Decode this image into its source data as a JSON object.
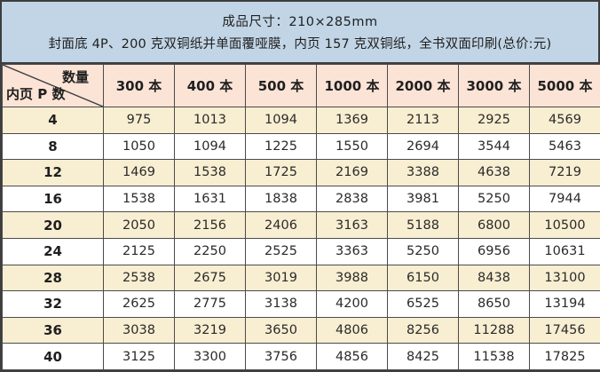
{
  "header": {
    "line1": "成品尺寸：210×285mm",
    "line2": "封面底 4P、200 克双铜纸并单面覆哑膜，内页 157 克双铜纸，全书双面印刷(总价:元)"
  },
  "table": {
    "corner": {
      "top_right_label": "数量",
      "bottom_left_label": "内页 P 数"
    },
    "columns": [
      "300 本",
      "400 本",
      "500 本",
      "1000 本",
      "2000 本",
      "3000 本",
      "5000 本"
    ],
    "rows": [
      {
        "pages": "4",
        "prices": [
          "975",
          "1013",
          "1094",
          "1369",
          "2113",
          "2925",
          "4569"
        ]
      },
      {
        "pages": "8",
        "prices": [
          "1050",
          "1094",
          "1225",
          "1550",
          "2694",
          "3544",
          "5463"
        ]
      },
      {
        "pages": "12",
        "prices": [
          "1469",
          "1538",
          "1725",
          "2169",
          "3388",
          "4638",
          "7219"
        ]
      },
      {
        "pages": "16",
        "prices": [
          "1538",
          "1631",
          "1838",
          "2838",
          "3981",
          "5250",
          "7944"
        ]
      },
      {
        "pages": "20",
        "prices": [
          "2050",
          "2156",
          "2406",
          "3163",
          "5188",
          "6800",
          "10500"
        ]
      },
      {
        "pages": "24",
        "prices": [
          "2125",
          "2250",
          "2525",
          "3363",
          "5250",
          "6956",
          "10631"
        ]
      },
      {
        "pages": "28",
        "prices": [
          "2538",
          "2675",
          "3019",
          "3988",
          "6150",
          "8438",
          "13100"
        ]
      },
      {
        "pages": "32",
        "prices": [
          "2625",
          "2775",
          "3138",
          "4200",
          "6525",
          "8650",
          "13194"
        ]
      },
      {
        "pages": "36",
        "prices": [
          "3038",
          "3219",
          "3650",
          "4806",
          "8256",
          "11288",
          "17456"
        ]
      },
      {
        "pages": "40",
        "prices": [
          "3125",
          "3300",
          "3756",
          "4856",
          "8425",
          "11538",
          "17825"
        ]
      }
    ]
  },
  "colors": {
    "title_band_bg": "#c1d5e6",
    "column_header_bg": "#fbe3d6",
    "striped_row_bg": "#f8eed1",
    "plain_row_bg": "#ffffff",
    "outer_border": "#3e3e3e",
    "grid_line": "#4b4b4b",
    "text": "#262626"
  },
  "chart_data": {
    "type": "table",
    "title": "成品尺寸：210×285mm",
    "subtitle": "封面底 4P、200 克双铜纸并单面覆哑膜，内页 157 克双铜纸，全书双面印刷(总价:元)",
    "row_axis_label": "内页 P 数",
    "column_axis_label": "数量",
    "categories": [
      "300 本",
      "400 本",
      "500 本",
      "1000 本",
      "2000 本",
      "3000 本",
      "5000 本"
    ],
    "series": [
      {
        "name": "4",
        "values": [
          975,
          1013,
          1094,
          1369,
          2113,
          2925,
          4569
        ]
      },
      {
        "name": "8",
        "values": [
          1050,
          1094,
          1225,
          1550,
          2694,
          3544,
          5463
        ]
      },
      {
        "name": "12",
        "values": [
          1469,
          1538,
          1725,
          2169,
          3388,
          4638,
          7219
        ]
      },
      {
        "name": "16",
        "values": [
          1538,
          1631,
          1838,
          2838,
          3981,
          5250,
          7944
        ]
      },
      {
        "name": "20",
        "values": [
          2050,
          2156,
          2406,
          3163,
          5188,
          6800,
          10500
        ]
      },
      {
        "name": "24",
        "values": [
          2125,
          2250,
          2525,
          3363,
          5250,
          6956,
          10631
        ]
      },
      {
        "name": "28",
        "values": [
          2538,
          2675,
          3019,
          3988,
          6150,
          8438,
          13100
        ]
      },
      {
        "name": "32",
        "values": [
          2625,
          2775,
          3138,
          4200,
          6525,
          8650,
          13194
        ]
      },
      {
        "name": "36",
        "values": [
          3038,
          3219,
          3650,
          4806,
          8256,
          11288,
          17456
        ]
      },
      {
        "name": "40",
        "values": [
          3125,
          3300,
          3756,
          4856,
          8425,
          11538,
          17825
        ]
      }
    ]
  }
}
